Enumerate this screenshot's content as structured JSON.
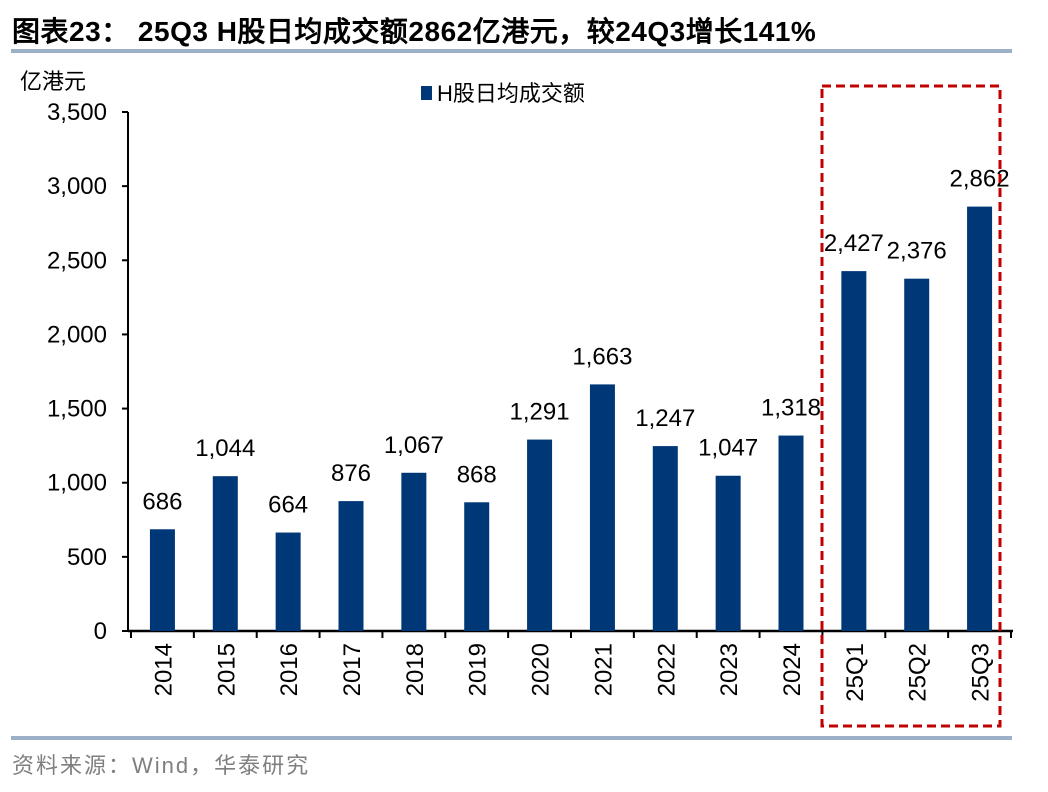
{
  "title": "图表23：  25Q3 H股日均成交额2862亿港元，较24Q3增长141%",
  "source": "资料来源：Wind，华泰研究",
  "chart_data": {
    "type": "bar",
    "title": "图表23：  25Q3 H股日均成交额2862亿港元，较24Q3增长141%",
    "ylabel": "亿港元",
    "xlabel": "",
    "ylim": [
      0,
      3500
    ],
    "yticks": [
      0,
      500,
      1000,
      1500,
      2000,
      2500,
      3000,
      3500
    ],
    "ytick_labels": [
      "0",
      "500",
      "1,000",
      "1,500",
      "2,000",
      "2,500",
      "3,000",
      "3,500"
    ],
    "categories": [
      "2014",
      "2015",
      "2016",
      "2017",
      "2018",
      "2019",
      "2020",
      "2021",
      "2022",
      "2023",
      "2024",
      "25Q1",
      "25Q2",
      "25Q3"
    ],
    "series": [
      {
        "name": "H股日均成交额",
        "values": [
          686,
          1044,
          664,
          876,
          1067,
          868,
          1291,
          1663,
          1247,
          1047,
          1318,
          2427,
          2376,
          2862
        ],
        "color": "#003777"
      }
    ],
    "data_labels": [
      "686",
      "1,044",
      "664",
      "876",
      "1,067",
      "868",
      "1,291",
      "1,663",
      "1,247",
      "1,047",
      "1,318",
      "2,427",
      "2,376",
      "2,862"
    ],
    "legend_position": "top-center",
    "grid": false,
    "highlight_box": {
      "categories": [
        "25Q1",
        "25Q2",
        "25Q3"
      ],
      "color": "#c00000",
      "style": "dashed"
    }
  }
}
